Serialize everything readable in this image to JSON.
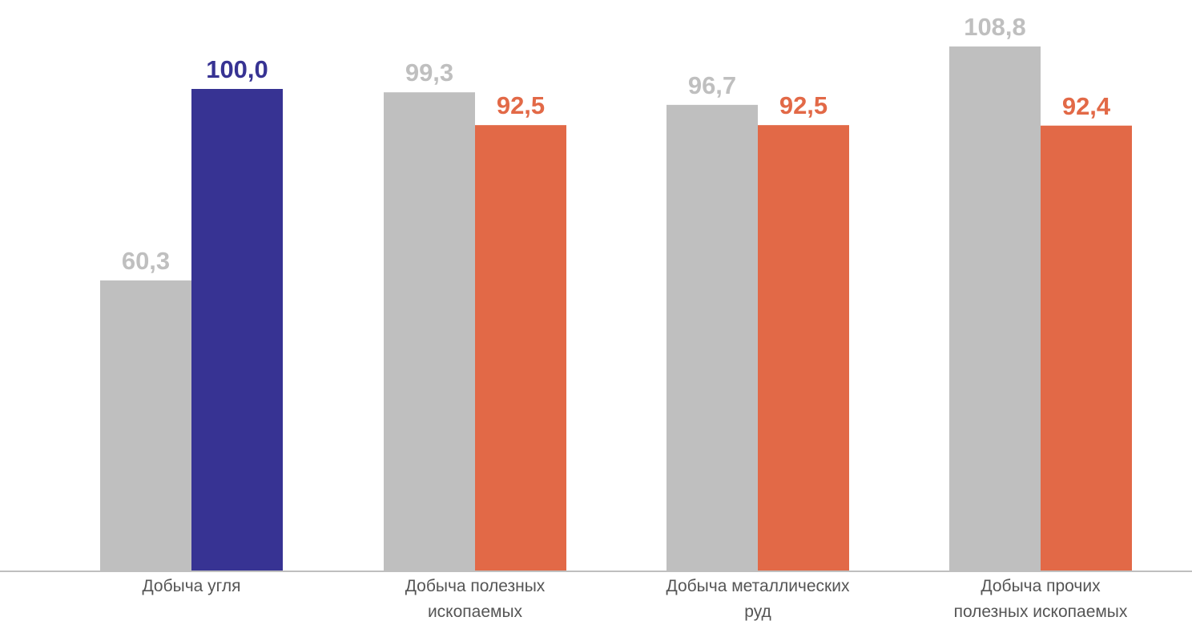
{
  "chart_data": {
    "type": "bar",
    "title": "",
    "xlabel": "",
    "ylabel": "",
    "ylim": [
      0,
      115
    ],
    "grid": false,
    "legend": "none",
    "categories": [
      "Добыча угля",
      "Добыча полезных ископаемых",
      "Добыча металлических руд",
      "Добыча прочих полезных ископаемых"
    ],
    "series": [
      {
        "values": [
          60.3,
          99.3,
          96.7,
          108.8
        ],
        "labels": [
          "60,3",
          "99,3",
          "96,7",
          "108,8"
        ],
        "colors": [
          "#bfbfbf",
          "#bfbfbf",
          "#bfbfbf",
          "#bfbfbf"
        ],
        "label_colors": [
          "#bfbfbf",
          "#bfbfbf",
          "#bfbfbf",
          "#bfbfbf"
        ]
      },
      {
        "values": [
          100.0,
          92.5,
          92.5,
          92.4
        ],
        "labels": [
          "100,0",
          "92,5",
          "92,5",
          "92,4"
        ],
        "colors": [
          "#373393",
          "#e26947",
          "#e26947",
          "#e26947"
        ],
        "label_colors": [
          "#373393",
          "#e26947",
          "#e26947",
          "#e26947"
        ]
      }
    ]
  },
  "category_lines": [
    [
      "Добыча угля"
    ],
    [
      "Добыча полезных",
      "ископаемых"
    ],
    [
      "Добыча металлических руд"
    ],
    [
      "Добыча прочих",
      "полезных ископаемых"
    ]
  ],
  "colors": {
    "axis": "#bfbfbf",
    "category_text": "#555555"
  }
}
